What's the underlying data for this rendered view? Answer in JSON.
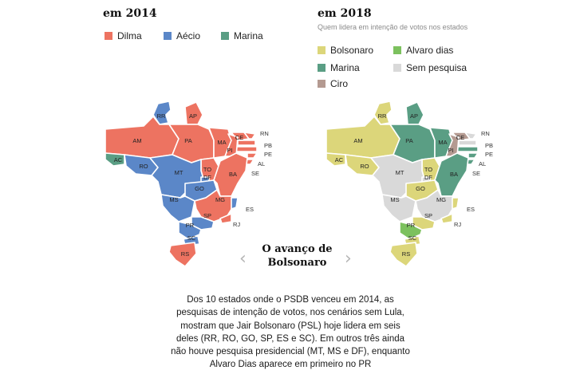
{
  "colors": {
    "dilma": "#ed7361",
    "aecio": "#5b87c8",
    "marina": "#5a9e84",
    "bolsonaro": "#dcd67a",
    "alvaro_dias": "#7cc15e",
    "sem_pesquisa": "#d9d9d9",
    "ciro": "#b49a91"
  },
  "left_panel": {
    "title": "em 2014",
    "legend": [
      "Dilma",
      "Aécio",
      "Marina"
    ]
  },
  "right_panel": {
    "title": "em 2018",
    "subtitle": "Quem lidera em intenção de votos nos estados",
    "legend": [
      "Bolsonaro",
      "Alvaro dias",
      "Marina",
      "Sem pesquisa",
      "Ciro"
    ]
  },
  "states": [
    "RR",
    "AP",
    "AM",
    "PA",
    "MA",
    "CE",
    "RN",
    "PB",
    "PE",
    "AL",
    "SE",
    "PI",
    "AC",
    "RO",
    "TO",
    "MT",
    "BA",
    "DF",
    "GO",
    "MS",
    "MG",
    "ES",
    "RJ",
    "SP",
    "PR",
    "SC",
    "RS"
  ],
  "winners_2014": {
    "RR": "aecio",
    "AP": "dilma",
    "AM": "dilma",
    "PA": "dilma",
    "MA": "dilma",
    "CE": "dilma",
    "RN": "dilma",
    "PB": "dilma",
    "PE": "dilma",
    "AL": "dilma",
    "SE": "dilma",
    "PI": "dilma",
    "AC": "marina",
    "RO": "aecio",
    "TO": "dilma",
    "MT": "aecio",
    "BA": "dilma",
    "DF": "aecio",
    "GO": "aecio",
    "MS": "aecio",
    "MG": "dilma",
    "ES": "aecio",
    "RJ": "dilma",
    "SP": "aecio",
    "PR": "aecio",
    "SC": "aecio",
    "RS": "dilma"
  },
  "leaders_2018": {
    "RR": "bolsonaro",
    "AP": "marina",
    "AM": "bolsonaro",
    "PA": "marina",
    "MA": "marina",
    "CE": "ciro",
    "RN": "sem_pesquisa",
    "PB": "sem_pesquisa",
    "PE": "marina",
    "AL": "marina",
    "SE": "marina",
    "PI": "ciro",
    "AC": "bolsonaro",
    "RO": "bolsonaro",
    "TO": "bolsonaro",
    "MT": "sem_pesquisa",
    "BA": "marina",
    "DF": "sem_pesquisa",
    "GO": "bolsonaro",
    "MS": "sem_pesquisa",
    "MG": "sem_pesquisa",
    "ES": "bolsonaro",
    "RJ": "bolsonaro",
    "SP": "bolsonaro",
    "PR": "alvaro_dias",
    "SC": "bolsonaro",
    "RS": "bolsonaro"
  },
  "caption": "O avanço de Bolsonaro",
  "nav": {
    "prev": "‹",
    "next": "›"
  },
  "body_text": "Dos 10 estados onde o PSDB venceu em 2014, as pesquisas de intenção de votos, nos cenários sem Lula, mostram que Jair Bolsonaro (PSL) hoje lidera em seis deles (RR, RO, GO, SP, ES e SC). Em outros três ainda não houve pesquisa presidencial (MT, MS e DF), enquanto Alvaro Dias aparece em primeiro no PR"
}
